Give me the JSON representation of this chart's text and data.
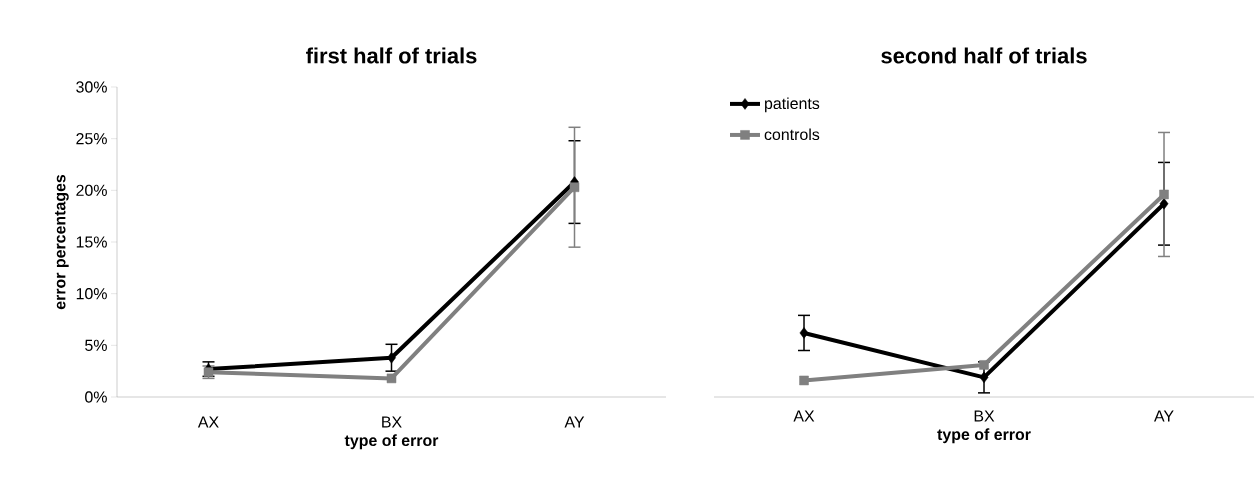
{
  "chart_data": [
    {
      "type": "line",
      "title": "first half of trials",
      "xlabel": "type of error",
      "ylabel": "error percentages",
      "categories": [
        "AX",
        "BX",
        "AY"
      ],
      "ylim": [
        0,
        30
      ],
      "yticks": [
        {
          "value": 0,
          "label": "0%"
        },
        {
          "value": 5,
          "label": "5%"
        },
        {
          "value": 10,
          "label": "10%"
        },
        {
          "value": 15,
          "label": "15%"
        },
        {
          "value": 20,
          "label": "20%"
        },
        {
          "value": 25,
          "label": "25%"
        },
        {
          "value": 30,
          "label": "30%"
        }
      ],
      "series": [
        {
          "color": "#000000",
          "marker": "diamond",
          "values": [
            2.7,
            3.8,
            20.8
          ],
          "errors": [
            0.7,
            1.3,
            4.0
          ]
        },
        {
          "color": "#808080",
          "marker": "square",
          "values": [
            2.4,
            1.8,
            20.3
          ],
          "errors": [
            0.6,
            null,
            5.8
          ]
        }
      ]
    },
    {
      "type": "line",
      "title": "second half of trials",
      "xlabel": "type of error",
      "categories": [
        "AX",
        "BX",
        "AY"
      ],
      "ylim": [
        0,
        30
      ],
      "tick_labels": "x",
      "legend": "top left",
      "series": [
        {
          "name": "patients",
          "color": "#000000",
          "marker": "diamond",
          "values": [
            6.2,
            1.9,
            18.7
          ],
          "errors": [
            1.7,
            1.5,
            4.0
          ]
        },
        {
          "name": "controls",
          "color": "#808080",
          "marker": "square",
          "values": [
            1.6,
            3.1,
            19.6
          ],
          "errors": [
            null,
            null,
            6.0
          ]
        }
      ]
    }
  ]
}
